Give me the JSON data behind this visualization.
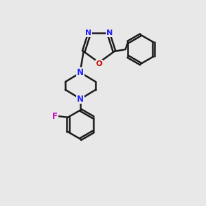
{
  "bg_color": "#e8e8e8",
  "bond_color": "#1a1a1a",
  "N_color": "#2020ff",
  "O_color": "#cc0000",
  "F_color": "#cc00cc",
  "bond_width": 1.8,
  "figsize": [
    3.0,
    3.0
  ],
  "dpi": 100,
  "xlim": [
    0,
    10
  ],
  "ylim": [
    0,
    10
  ]
}
